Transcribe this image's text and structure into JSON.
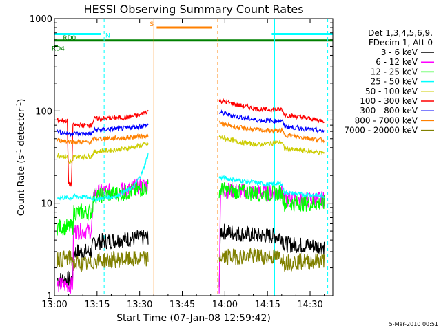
{
  "chart_data": {
    "type": "line",
    "title": "HESSI Observing Summary Count Rates",
    "xlabel": "Start Time (07-Jan-08 12:59:42)",
    "ylabel_main": "Count Rate (s",
    "ylabel_sup1": "-1",
    "ylabel_mid": " detector",
    "ylabel_sup2": "-1",
    "ylabel_end": ")",
    "y_scale": "log",
    "ylim": [
      1,
      1000
    ],
    "xlim_minutes": [
      0,
      98
    ],
    "x_ticks": [
      {
        "t": 0,
        "label": "13:00"
      },
      {
        "t": 15,
        "label": "13:15"
      },
      {
        "t": 30,
        "label": "13:30"
      },
      {
        "t": 45,
        "label": "13:45"
      },
      {
        "t": 60,
        "label": "14:00"
      },
      {
        "t": 75,
        "label": "14:15"
      },
      {
        "t": 90,
        "label": "14:30"
      }
    ],
    "y_ticks": [
      {
        "v": 1,
        "label": "1"
      },
      {
        "v": 10,
        "label": "10"
      },
      {
        "v": 100,
        "label": "100"
      },
      {
        "v": 1000,
        "label": "1000"
      }
    ],
    "legend": {
      "position": "right",
      "header": [
        "Det 1,3,4,5,6,9,",
        "FDecim 1, Att 0"
      ],
      "entries": [
        {
          "label": "3 - 6 keV",
          "color": "#000000"
        },
        {
          "label": "6 - 12 keV",
          "color": "#ff00ff"
        },
        {
          "label": "12 - 25 keV",
          "color": "#00ff00"
        },
        {
          "label": "25 - 50 keV",
          "color": "#00ffff"
        },
        {
          "label": "50 - 100 keV",
          "color": "#cccc00"
        },
        {
          "label": "100 - 300 keV",
          "color": "#ff0000"
        },
        {
          "label": "300 - 800 keV",
          "color": "#0000ff"
        },
        {
          "label": "800 - 7000 keV",
          "color": "#ff8000"
        },
        {
          "label": "7000 - 20000 keV",
          "color": "#808000"
        }
      ]
    },
    "flags": [
      {
        "label": "N",
        "color": "#00ffff",
        "y": 680,
        "segments": [
          [
            0,
            16.5
          ],
          [
            76.5,
            98
          ]
        ]
      },
      {
        "label": "S",
        "color": "#ff8000",
        "y": 800,
        "segments": [
          [
            36,
            55.5
          ]
        ]
      },
      {
        "label": "RD0",
        "color": "#008000",
        "y": 580,
        "segments": [
          [
            0,
            98
          ]
        ]
      },
      {
        "label": "RD4",
        "color": "#008000",
        "y": 500,
        "segments": [
          [
            0,
            1.2
          ]
        ]
      }
    ],
    "vlines": [
      {
        "t": 0,
        "color": "#00ffff",
        "dashed": false
      },
      {
        "t": 17.5,
        "color": "#00ffff",
        "dashed": true
      },
      {
        "t": 35,
        "color": "#ff8000",
        "dashed": false
      },
      {
        "t": 57.5,
        "color": "#ff8000",
        "dashed": true
      },
      {
        "t": 77.5,
        "color": "#00ffff",
        "dashed": false
      },
      {
        "t": 96.2,
        "color": "#00ffff",
        "dashed": true
      }
    ],
    "series": [
      {
        "name": "3 - 6 keV",
        "color": "#000000",
        "segments": [
          [
            [
              1,
              1.5
            ],
            [
              6.5,
              1.5
            ],
            [
              6.5,
              3
            ],
            [
              13,
              3
            ],
            [
              14,
              3.8
            ],
            [
              33,
              4.3
            ]
          ],
          [
            [
              58,
              1.3
            ],
            [
              58.5,
              5
            ],
            [
              70,
              4.5
            ],
            [
              80,
              4.4
            ],
            [
              81,
              3.6
            ],
            [
              95,
              3.4
            ]
          ]
        ]
      },
      {
        "name": "6 - 12 keV",
        "color": "#ff00ff",
        "segments": [
          [
            [
              1,
              1.3
            ],
            [
              6.5,
              1.3
            ],
            [
              6.5,
              5
            ],
            [
              13,
              5
            ],
            [
              14,
              13
            ],
            [
              25,
              14
            ],
            [
              33,
              16
            ]
          ],
          [
            [
              58,
              1.3
            ],
            [
              58.5,
              14
            ],
            [
              75,
              13
            ],
            [
              80,
              13.5
            ],
            [
              81,
              11
            ],
            [
              95,
              11
            ]
          ]
        ]
      },
      {
        "name": "12 - 25 keV",
        "color": "#00ff00",
        "segments": [
          [
            [
              1,
              5.5
            ],
            [
              6.5,
              5.5
            ],
            [
              6.5,
              8
            ],
            [
              13,
              8
            ],
            [
              14,
              12
            ],
            [
              25,
              13
            ],
            [
              33,
              15
            ]
          ],
          [
            [
              58,
              14
            ],
            [
              75,
              12.5
            ],
            [
              80,
              13
            ],
            [
              81,
              10
            ],
            [
              95,
              10
            ]
          ]
        ]
      },
      {
        "name": "25 - 50 keV",
        "color": "#00ffff",
        "segments": [
          [
            [
              1,
              11.5
            ],
            [
              6.5,
              11.5
            ],
            [
              6.5,
              12
            ],
            [
              13,
              11.5
            ],
            [
              14,
              11
            ],
            [
              22,
              12
            ],
            [
              28,
              15
            ],
            [
              31,
              22
            ],
            [
              33,
              34
            ]
          ],
          [
            [
              58,
              19
            ],
            [
              75,
              16
            ],
            [
              80,
              16.5
            ],
            [
              81,
              13
            ],
            [
              95,
              12
            ]
          ]
        ]
      },
      {
        "name": "50 - 100 keV",
        "color": "#cccc00",
        "segments": [
          [
            [
              1,
              33
            ],
            [
              4.5,
              32
            ],
            [
              5,
              28
            ],
            [
              6.5,
              28
            ],
            [
              6.5,
              32
            ],
            [
              13,
              32
            ],
            [
              14,
              36
            ],
            [
              25,
              39
            ],
            [
              33,
              44
            ]
          ],
          [
            [
              58,
              52
            ],
            [
              65,
              46
            ],
            [
              72,
              43
            ],
            [
              80,
              46
            ],
            [
              81,
              39
            ],
            [
              95,
              35
            ]
          ]
        ]
      },
      {
        "name": "100 - 300 keV",
        "color": "#ff0000",
        "segments": [
          [
            [
              1,
              80
            ],
            [
              4.5,
              78
            ],
            [
              5,
              16
            ],
            [
              6,
              16
            ],
            [
              6.5,
              70
            ],
            [
              13,
              70
            ],
            [
              14,
              82
            ],
            [
              25,
              85
            ],
            [
              30,
              90
            ],
            [
              33,
              100
            ]
          ],
          [
            [
              58,
              130
            ],
            [
              65,
              115
            ],
            [
              72,
              104
            ],
            [
              78,
              103
            ],
            [
              80,
              105
            ],
            [
              81,
              91
            ],
            [
              95,
              78
            ]
          ]
        ]
      },
      {
        "name": "300 - 800 keV",
        "color": "#0000ff",
        "segments": [
          [
            [
              1,
              60
            ],
            [
              4.5,
              57
            ],
            [
              6.5,
              57
            ],
            [
              13,
              56
            ],
            [
              14,
              62
            ],
            [
              25,
              65
            ],
            [
              33,
              70
            ]
          ],
          [
            [
              58,
              96
            ],
            [
              65,
              86
            ],
            [
              72,
              79
            ],
            [
              78,
              78
            ],
            [
              80,
              79
            ],
            [
              81,
              68
            ],
            [
              95,
              60
            ]
          ]
        ]
      },
      {
        "name": "800 - 7000 keV",
        "color": "#ff8000",
        "segments": [
          [
            [
              1,
              48
            ],
            [
              4.5,
              47
            ],
            [
              6.5,
              46
            ],
            [
              13,
              46
            ],
            [
              14,
              50
            ],
            [
              25,
              51
            ],
            [
              33,
              54
            ]
          ],
          [
            [
              58,
              73
            ],
            [
              65,
              66
            ],
            [
              72,
              62
            ],
            [
              78,
              61
            ],
            [
              80,
              62
            ],
            [
              81,
              55
            ],
            [
              95,
              48
            ]
          ]
        ]
      },
      {
        "name": "7000 - 20000 keV",
        "color": "#808000",
        "segments": [
          [
            [
              1,
              2.5
            ],
            [
              6.5,
              2.5
            ],
            [
              6.5,
              2.2
            ],
            [
              13,
              2.2
            ],
            [
              14,
              2.4
            ],
            [
              33,
              2.5
            ]
          ],
          [
            [
              58,
              2.6
            ],
            [
              70,
              2.7
            ],
            [
              80,
              2.6
            ],
            [
              81,
              2.3
            ],
            [
              95,
              2.4
            ]
          ]
        ]
      }
    ]
  },
  "footer_stamp": "5-Mar-2010 00:51"
}
